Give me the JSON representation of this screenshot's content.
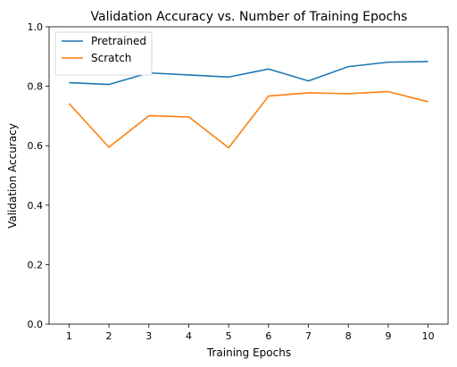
{
  "chart_data": {
    "type": "line",
    "title": "Validation Accuracy vs. Number of Training Epochs",
    "xlabel": "Training Epochs",
    "ylabel": "Validation Accuracy",
    "x": [
      1,
      2,
      3,
      4,
      5,
      6,
      7,
      8,
      9,
      10
    ],
    "xlim": [
      0.5,
      10.5
    ],
    "ylim": [
      0.0,
      1.0
    ],
    "xticks": [
      "1",
      "2",
      "3",
      "4",
      "5",
      "6",
      "7",
      "8",
      "9",
      "10"
    ],
    "yticks": [
      "0.0",
      "0.2",
      "0.4",
      "0.6",
      "0.8",
      "1.0"
    ],
    "grid": false,
    "legend_position": "top-left",
    "series": [
      {
        "name": "Pretrained",
        "color": "#1f77b4",
        "values": [
          0.812,
          0.806,
          0.845,
          0.838,
          0.831,
          0.858,
          0.818,
          0.866,
          0.881,
          0.883
        ]
      },
      {
        "name": "Scratch",
        "color": "#ff7f0e",
        "values": [
          0.742,
          0.595,
          0.701,
          0.697,
          0.593,
          0.767,
          0.778,
          0.775,
          0.782,
          0.748
        ]
      }
    ]
  }
}
